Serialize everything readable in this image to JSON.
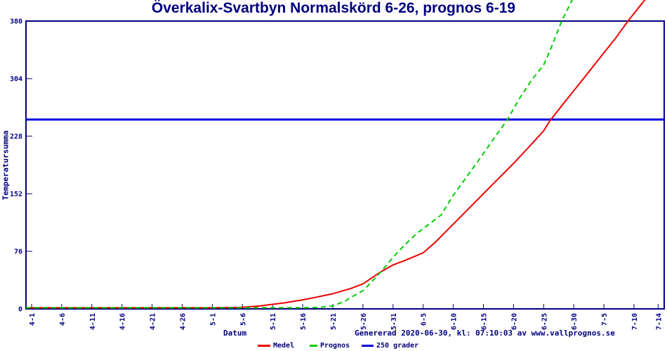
{
  "title": "Överkalix-Svartbyn Normalskörd 6-26, prognos 6-19",
  "axes": {
    "y_label": "Temperatursumma",
    "x_label": "Datum"
  },
  "footer": {
    "generated": "Genererad 2020-06-30, kl: 07:10:03 av www.vallprognos.se"
  },
  "legend": [
    {
      "label": "Medel",
      "color": "#ee0000",
      "dashed": false
    },
    {
      "label": "Prognos",
      "color": "#00cc00",
      "dashed": true
    },
    {
      "label": "250 grader",
      "color": "#0000dd",
      "dashed": false
    }
  ],
  "colors": {
    "axis": "#000080",
    "text": "#000080",
    "medel": "#ee0000",
    "prognos": "#00cc00",
    "grader": "#0000dd"
  },
  "chart_data": {
    "type": "line",
    "title": "Överkalix-Svartbyn Normalskörd 6-26, prognos 6-19",
    "xlabel": "Datum",
    "ylabel": "Temperatursumma",
    "ylim": [
      0,
      380
    ],
    "y_ticks": [
      0,
      76,
      152,
      228,
      304,
      380
    ],
    "x_ticks": [
      "4-1",
      "4-6",
      "4-11",
      "4-16",
      "4-21",
      "4-26",
      "5-1",
      "5-6",
      "5-11",
      "5-16",
      "5-21",
      "5-26",
      "5-31",
      "6-5",
      "6-10",
      "6-15",
      "6-20",
      "6-25",
      "6-30",
      "7-5",
      "7-10",
      "7-14"
    ],
    "grid": false,
    "legend_position": "bottom",
    "reference_line": {
      "name": "250 grader",
      "value": 250
    },
    "series": [
      {
        "name": "Medel",
        "style": "solid",
        "color": "#ee0000",
        "points": [
          [
            "4-1",
            1.5
          ],
          [
            "4-11",
            1.5
          ],
          [
            "4-21",
            1.5
          ],
          [
            "5-1",
            1.5
          ],
          [
            "5-6",
            2
          ],
          [
            "5-9",
            4
          ],
          [
            "5-11",
            6
          ],
          [
            "5-13",
            8
          ],
          [
            "5-16",
            12
          ],
          [
            "5-18",
            15
          ],
          [
            "5-21",
            20
          ],
          [
            "5-24",
            27
          ],
          [
            "5-26",
            33
          ],
          [
            "5-29",
            49
          ],
          [
            "5-31",
            58
          ],
          [
            "6-2",
            64
          ],
          [
            "6-5",
            74
          ],
          [
            "6-7",
            88
          ],
          [
            "6-10",
            112
          ],
          [
            "6-12",
            128
          ],
          [
            "6-15",
            152
          ],
          [
            "6-17",
            168
          ],
          [
            "6-20",
            192
          ],
          [
            "6-22",
            209
          ],
          [
            "6-25",
            235
          ],
          [
            "6-26",
            248
          ],
          [
            "6-28",
            268
          ],
          [
            "6-30",
            288
          ],
          [
            "7-2",
            308
          ],
          [
            "7-5",
            338
          ],
          [
            "7-7",
            358
          ],
          [
            "7-9",
            380
          ],
          [
            "7-12",
            410
          ]
        ]
      },
      {
        "name": "Prognos",
        "style": "dashed",
        "color": "#00cc00",
        "points": [
          [
            "4-1",
            1.5
          ],
          [
            "4-11",
            1.5
          ],
          [
            "4-21",
            1.5
          ],
          [
            "5-1",
            1.5
          ],
          [
            "5-11",
            1.5
          ],
          [
            "5-16",
            1.5
          ],
          [
            "5-19",
            2
          ],
          [
            "5-21",
            4
          ],
          [
            "5-23",
            10
          ],
          [
            "5-24",
            15
          ],
          [
            "5-26",
            24
          ],
          [
            "5-27",
            32
          ],
          [
            "5-29",
            49
          ],
          [
            "5-31",
            68
          ],
          [
            "6-2",
            85
          ],
          [
            "6-4",
            100
          ],
          [
            "6-6",
            112
          ],
          [
            "6-8",
            124
          ],
          [
            "6-10",
            150
          ],
          [
            "6-12",
            172
          ],
          [
            "6-15",
            205
          ],
          [
            "6-17",
            228
          ],
          [
            "6-19",
            250
          ],
          [
            "6-21",
            278
          ],
          [
            "6-23",
            302
          ],
          [
            "6-25",
            322
          ],
          [
            "6-26",
            340
          ],
          [
            "6-28",
            380
          ],
          [
            "6-30",
            412
          ]
        ]
      },
      {
        "name": "250 grader",
        "style": "solid",
        "color": "#0000dd",
        "points": [
          [
            "4-1",
            250
          ],
          [
            "7-14",
            250
          ]
        ]
      }
    ]
  }
}
